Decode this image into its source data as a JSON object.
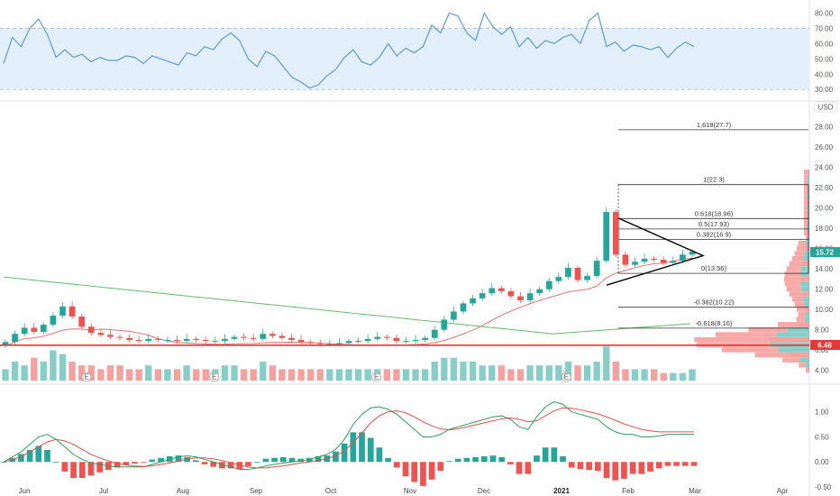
{
  "colors": {
    "up": "#26a69a",
    "down": "#ef5350",
    "rsi_line": "#5b9bd5",
    "rsi_band": "#e3f0fb",
    "macd_line": "#2e9e5b",
    "signal_line": "#e05050",
    "fib_line": "#333333",
    "sma_green": "#66bb6a",
    "sma_red": "#e57373",
    "support": "#e53935",
    "price_badge": "#26a69a"
  },
  "price_axis": {
    "currency": "USD",
    "ticks": [
      "28.00",
      "26.00",
      "24.00",
      "22.00",
      "20.00",
      "18.00",
      "16.00",
      "14.00",
      "12.00",
      "10.00",
      "8.00",
      "6.00",
      "4.00"
    ],
    "current_price_label": "15.72",
    "support_price_label": "6.48"
  },
  "rsi_axis": {
    "ticks": [
      "80.00",
      "70.00",
      "60.00",
      "50.00",
      "40.00",
      "30.00"
    ]
  },
  "macd_axis": {
    "ticks": [
      "1.00",
      "0.50",
      "0.00",
      "-0.50"
    ]
  },
  "time_axis": {
    "months": [
      "Jun",
      "Jul",
      "Aug",
      "Sep",
      "Oct",
      "Nov",
      "Dec",
      "2021",
      "Feb",
      "Mar",
      "Apr"
    ]
  },
  "fibonacci": [
    {
      "label": "1.618(27.7)"
    },
    {
      "label": "1(22.3)"
    },
    {
      "label": "0.618(18.96)"
    },
    {
      "label": "0.5(17.93)"
    },
    {
      "label": "0.382(16.9)"
    },
    {
      "label": "0(13.56)"
    },
    {
      "label": "-0.382(10.22)"
    },
    {
      "label": "-0.618(8.16)"
    }
  ],
  "earnings_marker": "E",
  "chart_data": [
    {
      "type": "line",
      "title": "",
      "name": "rsi",
      "ylim": [
        26,
        85
      ],
      "reference_band": [
        30,
        70
      ],
      "x": [
        0,
        1,
        2,
        3,
        4,
        5,
        6,
        7,
        8,
        9,
        10,
        11,
        12,
        13,
        14,
        15,
        16,
        17,
        18,
        19,
        20,
        21,
        22,
        23,
        24,
        25,
        26,
        27,
        28,
        29,
        30,
        31,
        32,
        33,
        34,
        35,
        36,
        37,
        38,
        39,
        40,
        41,
        42,
        43,
        44,
        45,
        46,
        47,
        48,
        49,
        50,
        51,
        52,
        53,
        54,
        55,
        56,
        57,
        58,
        59,
        60,
        61,
        62,
        63,
        64,
        65,
        66,
        67,
        68,
        69,
        70,
        71,
        72,
        73,
        74,
        75,
        76,
        77,
        78,
        79
      ],
      "y": [
        47,
        64,
        58,
        70,
        76,
        66,
        51,
        56,
        51,
        53,
        48,
        51,
        49,
        49,
        52,
        51,
        47,
        52,
        50,
        48,
        46,
        54,
        52,
        58,
        56,
        63,
        67,
        62,
        50,
        45,
        55,
        52,
        45,
        38,
        35,
        31,
        33,
        39,
        43,
        51,
        56,
        48,
        46,
        51,
        60,
        52,
        57,
        54,
        58,
        72,
        67,
        80,
        78,
        67,
        62,
        80,
        71,
        66,
        71,
        58,
        64,
        57,
        62,
        60,
        64,
        66,
        60,
        75,
        80,
        58,
        61,
        55,
        59,
        58,
        56,
        58,
        51,
        57,
        61,
        58
      ]
    },
    {
      "type": "bar",
      "name": "price",
      "ylim": [
        3,
        30
      ],
      "current_price": 15.72,
      "support": 6.48,
      "fib_levels": [
        27.7,
        22.3,
        18.96,
        17.93,
        16.9,
        13.56,
        10.22,
        8.16
      ],
      "triangle_wedge": {
        "start_price_top": 19.0,
        "start_price_bottom": 12.4,
        "apex_price": 15.3
      },
      "closes": [
        6.8,
        7.6,
        8.2,
        7.8,
        8.5,
        9.4,
        10.3,
        9.3,
        8.3,
        7.7,
        7.5,
        7.3,
        7.2,
        7.0,
        6.9,
        7.1,
        7.0,
        7.0,
        6.9,
        7.1,
        7.0,
        6.9,
        6.9,
        7.1,
        7.3,
        7.2,
        7.1,
        7.6,
        7.4,
        7.2,
        7.0,
        6.8,
        6.7,
        6.6,
        6.6,
        6.7,
        6.9,
        6.9,
        7.1,
        7.3,
        7.2,
        6.9,
        6.9,
        7.0,
        7.2,
        8.0,
        9.0,
        9.8,
        10.6,
        11.1,
        11.6,
        12.1,
        11.8,
        11.3,
        10.9,
        11.6,
        12.0,
        12.8,
        13.2,
        14.1,
        12.9,
        13.3,
        14.8,
        19.6,
        15.4,
        14.4,
        14.7,
        15.0,
        14.9,
        14.6,
        14.8,
        15.4,
        15.7
      ],
      "volume": [
        3,
        5,
        4,
        6,
        5,
        8,
        7,
        5,
        4,
        4,
        3,
        4,
        4,
        3,
        3,
        4,
        3,
        3,
        3,
        4,
        3,
        3,
        3,
        4,
        4,
        3,
        3,
        5,
        4,
        3,
        3,
        3,
        3,
        3,
        3,
        3,
        3,
        3,
        3,
        3,
        3,
        3,
        3,
        3,
        3,
        5,
        6,
        6,
        5,
        5,
        4,
        4,
        4,
        3,
        3,
        4,
        4,
        4,
        4,
        5,
        4,
        4,
        5,
        9,
        5,
        3,
        3,
        3,
        3,
        2,
        2,
        2,
        3
      ],
      "earnings_positions": [
        0.12,
        0.305,
        0.54,
        0.815
      ]
    },
    {
      "type": "line",
      "name": "macd",
      "ylim": [
        -0.5,
        1.3
      ],
      "x": [
        0,
        1,
        2,
        3,
        4,
        5,
        6,
        7,
        8,
        9,
        10,
        11,
        12,
        13,
        14,
        15,
        16,
        17,
        18,
        19,
        20,
        21,
        22,
        23,
        24,
        25,
        26,
        27,
        28,
        29,
        30,
        31,
        32,
        33,
        34,
        35,
        36,
        37,
        38,
        39,
        40,
        41,
        42,
        43,
        44,
        45,
        46,
        47,
        48,
        49,
        50,
        51,
        52,
        53,
        54,
        55,
        56,
        57,
        58,
        59,
        60,
        61,
        62,
        63,
        64,
        65,
        66,
        67,
        68,
        69,
        70,
        71,
        72,
        73,
        74,
        75,
        76,
        77,
        78,
        79
      ],
      "macd": [
        0.0,
        0.1,
        0.2,
        0.35,
        0.5,
        0.55,
        0.45,
        0.3,
        0.15,
        0.05,
        -0.02,
        -0.05,
        -0.08,
        -0.1,
        -0.1,
        -0.1,
        -0.1,
        -0.05,
        0.0,
        0.05,
        0.1,
        0.12,
        0.1,
        0.05,
        0.0,
        -0.05,
        -0.1,
        -0.15,
        -0.15,
        -0.12,
        -0.08,
        -0.05,
        -0.02,
        0.0,
        0.02,
        0.05,
        0.1,
        0.15,
        0.25,
        0.45,
        0.75,
        0.95,
        1.08,
        1.1,
        1.05,
        0.95,
        0.8,
        0.65,
        0.5,
        0.5,
        0.55,
        0.65,
        0.7,
        0.75,
        0.8,
        0.85,
        0.9,
        0.92,
        0.85,
        0.7,
        0.65,
        0.9,
        1.1,
        1.2,
        1.15,
        1.0,
        0.95,
        0.9,
        0.85,
        0.7,
        0.6,
        0.55,
        0.55,
        0.5,
        0.5,
        0.52,
        0.55,
        0.55,
        0.55,
        0.55
      ],
      "signal": [
        0.0,
        0.05,
        0.1,
        0.2,
        0.3,
        0.4,
        0.45,
        0.42,
        0.35,
        0.25,
        0.15,
        0.08,
        0.02,
        -0.03,
        -0.06,
        -0.08,
        -0.09,
        -0.08,
        -0.05,
        -0.02,
        0.02,
        0.06,
        0.08,
        0.08,
        0.06,
        0.03,
        -0.02,
        -0.06,
        -0.1,
        -0.12,
        -0.12,
        -0.1,
        -0.08,
        -0.05,
        -0.02,
        0.0,
        0.03,
        0.07,
        0.12,
        0.22,
        0.38,
        0.58,
        0.78,
        0.92,
        1.0,
        1.02,
        0.98,
        0.9,
        0.8,
        0.72,
        0.66,
        0.64,
        0.66,
        0.7,
        0.74,
        0.78,
        0.82,
        0.86,
        0.88,
        0.85,
        0.8,
        0.82,
        0.92,
        1.02,
        1.08,
        1.07,
        1.04,
        1.0,
        0.96,
        0.9,
        0.83,
        0.76,
        0.7,
        0.65,
        0.62,
        0.6,
        0.6,
        0.6,
        0.6,
        0.6
      ]
    }
  ]
}
